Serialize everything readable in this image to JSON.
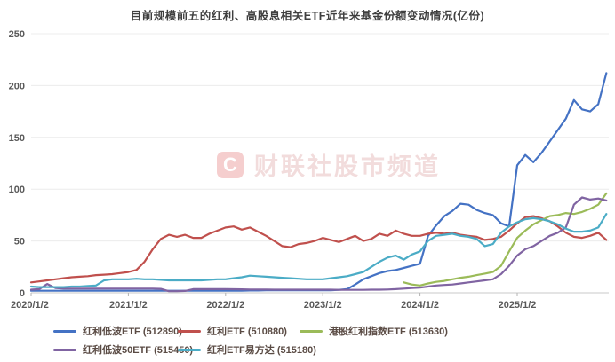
{
  "title": "目前规模前五的红利、高股息相关ETF近年来基金份额变动情况(亿份)",
  "watermark": {
    "logo_letter": "C",
    "text": "财联社股市频道"
  },
  "chart_data": {
    "type": "line",
    "title": "目前规模前五的红利、高股息相关ETF近年来基金份额变动情况(亿份)",
    "unit": "亿份",
    "xlabel": "",
    "ylabel": "",
    "ylim": [
      0,
      250
    ],
    "y_ticks": [
      0,
      50,
      100,
      150,
      200,
      250
    ],
    "x_tick_labels": [
      "2020/1/2",
      "2021/1/2",
      "2022/1/2",
      "2023/1/2",
      "2024/1/2",
      "2025/1/2"
    ],
    "x_start_year": 2020,
    "x_step": "monthly",
    "grid": "horizontal",
    "legend_position": "bottom",
    "legend_rows": [
      [
        0,
        1,
        2
      ],
      [
        3,
        4
      ]
    ],
    "series": [
      {
        "name": "红利低波ETF (512890)",
        "color": "#4472c4",
        "values": [
          2,
          2,
          2,
          2,
          2,
          2,
          2,
          2,
          2,
          2,
          2,
          2,
          2,
          2,
          2,
          2,
          2,
          2,
          2,
          2,
          2,
          2,
          2,
          2,
          2,
          2,
          2,
          2.2,
          2.2,
          2.4,
          2.4,
          2.5,
          2.5,
          2.5,
          2.5,
          2.5,
          2.5,
          2.5,
          2.8,
          3.5,
          8,
          13,
          16,
          19,
          21,
          22,
          24,
          26,
          28,
          55,
          65,
          74,
          79,
          86,
          85,
          80,
          77,
          75,
          67,
          64,
          123,
          133,
          126,
          135,
          146,
          157,
          168,
          186,
          177,
          175,
          182,
          212
        ]
      },
      {
        "name": "红利ETF (510880)",
        "color": "#c0504d",
        "values": [
          10,
          11,
          12,
          13,
          14,
          15,
          15.5,
          16,
          17,
          17.5,
          18,
          19,
          20,
          22,
          30,
          42,
          52,
          56,
          54,
          56,
          53,
          53,
          57,
          60,
          63,
          64,
          61,
          63,
          59,
          55,
          50,
          45,
          44,
          47,
          48,
          50,
          53,
          51,
          49,
          52,
          55,
          50,
          52,
          57,
          55,
          60,
          57,
          55,
          55,
          57,
          58,
          57,
          58,
          56,
          55,
          54,
          51,
          52,
          54,
          60,
          67,
          73,
          74,
          72,
          69,
          64,
          58,
          54,
          53,
          55,
          58,
          51
        ]
      },
      {
        "name": "港股红利指数ETF (513630)",
        "color": "#9bbb59",
        "values": [
          null,
          null,
          null,
          null,
          null,
          null,
          null,
          null,
          null,
          null,
          null,
          null,
          null,
          null,
          null,
          null,
          null,
          null,
          null,
          null,
          null,
          null,
          null,
          null,
          null,
          null,
          null,
          null,
          null,
          null,
          null,
          null,
          null,
          null,
          null,
          null,
          null,
          null,
          null,
          null,
          null,
          null,
          null,
          null,
          null,
          null,
          10,
          8,
          7,
          9,
          10.5,
          11.5,
          13,
          14.5,
          15.5,
          17,
          18.5,
          20,
          26,
          40,
          53,
          60,
          66,
          70,
          74,
          75,
          77,
          76,
          78,
          81,
          85,
          96
        ]
      },
      {
        "name": "红利低波50ETF (515450)",
        "color": "#8064a2",
        "values": [
          3,
          3.5,
          8.5,
          4.5,
          4,
          4,
          4,
          4,
          4,
          4,
          4,
          4,
          4,
          4,
          4,
          4,
          3.8,
          1.5,
          1.5,
          1.8,
          3.5,
          3.5,
          3.5,
          3.5,
          3.5,
          3.4,
          3.3,
          3.2,
          3.2,
          3.1,
          3,
          3,
          3,
          3,
          3,
          3,
          3,
          3,
          2.8,
          2.8,
          2.8,
          2.8,
          3,
          3,
          3.2,
          3.5,
          4,
          4.5,
          5,
          6,
          7,
          7.5,
          8,
          9,
          10,
          11,
          12,
          13,
          18,
          26,
          36,
          42,
          45,
          50,
          55,
          58,
          63,
          85,
          92,
          90,
          91,
          89
        ]
      },
      {
        "name": "红利ETF易方达 (515180)",
        "color": "#4bacc6",
        "values": [
          6,
          5.5,
          5.5,
          5.5,
          5.5,
          6,
          6,
          6.5,
          7,
          12,
          13,
          13,
          13,
          13.5,
          13,
          13,
          12.5,
          12,
          12,
          12,
          12,
          12,
          12.5,
          13,
          13,
          14,
          15,
          16.5,
          16,
          15.5,
          15,
          14.5,
          14,
          13.5,
          13,
          13,
          13,
          14,
          15,
          16,
          18,
          20,
          25,
          30,
          34,
          36,
          32,
          37,
          40,
          50,
          55,
          56,
          57,
          55,
          54,
          52,
          45,
          47,
          58,
          64,
          68,
          71,
          72,
          71,
          69,
          66,
          62,
          59,
          59,
          60,
          63,
          76
        ]
      }
    ]
  }
}
